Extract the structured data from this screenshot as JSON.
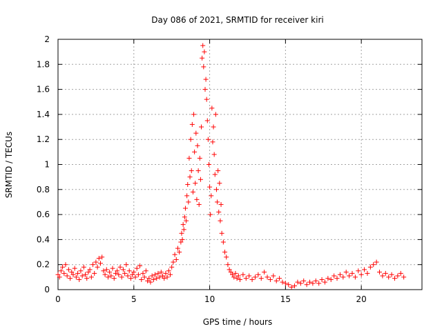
{
  "chart_data": {
    "type": "scatter",
    "title": "Day 086 of 2021, SRMTID for receiver kiri",
    "xlabel": "GPS time / hours",
    "ylabel": "SRMTID / TECUs",
    "xlim": [
      0,
      24
    ],
    "ylim": [
      0,
      2
    ],
    "grid": true,
    "xticks": [
      0,
      5,
      10,
      15,
      20
    ],
    "xtick_labels": [
      "0",
      "5",
      "10",
      "15",
      "20"
    ],
    "yticks": [
      0,
      0.2,
      0.4,
      0.6,
      0.8,
      1,
      1.2,
      1.4,
      1.6,
      1.8,
      2
    ],
    "ytick_labels": [
      "0",
      "0.2",
      "0.4",
      "0.6",
      "0.8",
      "1",
      "1.2",
      "1.4",
      "1.6",
      "1.8",
      "2"
    ],
    "marker": "+",
    "series_color": "#ff0000",
    "series": [
      {
        "name": "SRMTID",
        "points": [
          [
            0.0,
            0.12
          ],
          [
            0.1,
            0.1
          ],
          [
            0.2,
            0.15
          ],
          [
            0.3,
            0.18
          ],
          [
            0.4,
            0.13
          ],
          [
            0.5,
            0.2
          ],
          [
            0.6,
            0.11
          ],
          [
            0.7,
            0.16
          ],
          [
            0.8,
            0.09
          ],
          [
            0.9,
            0.14
          ],
          [
            1.0,
            0.12
          ],
          [
            1.1,
            0.17
          ],
          [
            1.2,
            0.1
          ],
          [
            1.3,
            0.13
          ],
          [
            1.4,
            0.08
          ],
          [
            1.5,
            0.15
          ],
          [
            1.6,
            0.11
          ],
          [
            1.7,
            0.18
          ],
          [
            1.8,
            0.12
          ],
          [
            1.9,
            0.09
          ],
          [
            2.0,
            0.14
          ],
          [
            2.1,
            0.16
          ],
          [
            2.2,
            0.1
          ],
          [
            2.3,
            0.2
          ],
          [
            2.4,
            0.13
          ],
          [
            2.5,
            0.22
          ],
          [
            2.6,
            0.18
          ],
          [
            2.7,
            0.25
          ],
          [
            2.8,
            0.21
          ],
          [
            2.9,
            0.26
          ],
          [
            3.0,
            0.15
          ],
          [
            3.1,
            0.12
          ],
          [
            3.2,
            0.16
          ],
          [
            3.3,
            0.1
          ],
          [
            3.4,
            0.14
          ],
          [
            3.5,
            0.11
          ],
          [
            3.6,
            0.17
          ],
          [
            3.7,
            0.09
          ],
          [
            3.8,
            0.13
          ],
          [
            3.9,
            0.15
          ],
          [
            4.0,
            0.12
          ],
          [
            4.1,
            0.18
          ],
          [
            4.2,
            0.1
          ],
          [
            4.3,
            0.16
          ],
          [
            4.4,
            0.13
          ],
          [
            4.5,
            0.2
          ],
          [
            4.6,
            0.11
          ],
          [
            4.7,
            0.15
          ],
          [
            4.8,
            0.09
          ],
          [
            4.9,
            0.12
          ],
          [
            5.0,
            0.14
          ],
          [
            5.1,
            0.1
          ],
          [
            5.2,
            0.17
          ],
          [
            5.3,
            0.12
          ],
          [
            5.4,
            0.19
          ],
          [
            5.5,
            0.08
          ],
          [
            5.6,
            0.13
          ],
          [
            5.7,
            0.1
          ],
          [
            5.8,
            0.15
          ],
          [
            5.9,
            0.07
          ],
          [
            6.0,
            0.09
          ],
          [
            6.1,
            0.06
          ],
          [
            6.2,
            0.11
          ],
          [
            6.3,
            0.08
          ],
          [
            6.4,
            0.12
          ],
          [
            6.5,
            0.09
          ],
          [
            6.6,
            0.13
          ],
          [
            6.7,
            0.1
          ],
          [
            6.8,
            0.14
          ],
          [
            6.9,
            0.11
          ],
          [
            7.0,
            0.09
          ],
          [
            7.1,
            0.13
          ],
          [
            7.2,
            0.1
          ],
          [
            7.3,
            0.15
          ],
          [
            7.4,
            0.12
          ],
          [
            7.5,
            0.18
          ],
          [
            7.6,
            0.22
          ],
          [
            7.7,
            0.28
          ],
          [
            7.8,
            0.24
          ],
          [
            7.9,
            0.33
          ],
          [
            8.0,
            0.3
          ],
          [
            8.1,
            0.38
          ],
          [
            8.15,
            0.45
          ],
          [
            8.2,
            0.4
          ],
          [
            8.25,
            0.52
          ],
          [
            8.3,
            0.48
          ],
          [
            8.35,
            0.58
          ],
          [
            8.4,
            0.65
          ],
          [
            8.45,
            0.55
          ],
          [
            8.5,
            0.75
          ],
          [
            8.55,
            0.84
          ],
          [
            8.6,
            0.7
          ],
          [
            8.65,
            1.05
          ],
          [
            8.7,
            0.9
          ],
          [
            8.75,
            1.2
          ],
          [
            8.8,
            0.95
          ],
          [
            8.85,
            1.32
          ],
          [
            8.9,
            0.78
          ],
          [
            8.95,
            1.4
          ],
          [
            9.0,
            1.1
          ],
          [
            9.05,
            0.85
          ],
          [
            9.1,
            1.25
          ],
          [
            9.15,
            0.72
          ],
          [
            9.2,
            1.15
          ],
          [
            9.25,
            0.95
          ],
          [
            9.3,
            0.68
          ],
          [
            9.35,
            1.05
          ],
          [
            9.4,
            0.88
          ],
          [
            9.45,
            1.3
          ],
          [
            9.5,
            1.85
          ],
          [
            9.55,
            1.95
          ],
          [
            9.6,
            1.78
          ],
          [
            9.65,
            1.9
          ],
          [
            9.7,
            1.6
          ],
          [
            9.75,
            1.68
          ],
          [
            9.8,
            1.52
          ],
          [
            9.85,
            1.35
          ],
          [
            9.9,
            1.2
          ],
          [
            9.95,
            1.0
          ],
          [
            10.0,
            0.82
          ],
          [
            10.05,
            0.6
          ],
          [
            10.1,
            0.75
          ],
          [
            10.15,
            1.45
          ],
          [
            10.2,
            1.18
          ],
          [
            10.25,
            1.3
          ],
          [
            10.3,
            1.08
          ],
          [
            10.35,
            0.92
          ],
          [
            10.4,
            1.4
          ],
          [
            10.45,
            0.8
          ],
          [
            10.5,
            0.7
          ],
          [
            10.55,
            0.95
          ],
          [
            10.6,
            0.62
          ],
          [
            10.65,
            0.85
          ],
          [
            10.7,
            0.55
          ],
          [
            10.75,
            0.68
          ],
          [
            10.8,
            0.45
          ],
          [
            10.9,
            0.38
          ],
          [
            11.0,
            0.3
          ],
          [
            11.1,
            0.26
          ],
          [
            11.2,
            0.2
          ],
          [
            11.3,
            0.16
          ],
          [
            11.4,
            0.14
          ],
          [
            11.5,
            0.12
          ],
          [
            11.6,
            0.1
          ],
          [
            11.7,
            0.13
          ],
          [
            11.8,
            0.09
          ],
          [
            11.9,
            0.11
          ],
          [
            12.0,
            0.08
          ],
          [
            12.2,
            0.12
          ],
          [
            12.4,
            0.09
          ],
          [
            12.6,
            0.11
          ],
          [
            12.8,
            0.08
          ],
          [
            13.0,
            0.1
          ],
          [
            13.2,
            0.12
          ],
          [
            13.4,
            0.09
          ],
          [
            13.6,
            0.14
          ],
          [
            13.8,
            0.1
          ],
          [
            14.0,
            0.08
          ],
          [
            14.2,
            0.11
          ],
          [
            14.4,
            0.07
          ],
          [
            14.6,
            0.09
          ],
          [
            14.8,
            0.06
          ],
          [
            15.0,
            0.05
          ],
          [
            15.2,
            0.04
          ],
          [
            15.4,
            0.02
          ],
          [
            15.6,
            0.03
          ],
          [
            15.8,
            0.06
          ],
          [
            16.0,
            0.05
          ],
          [
            16.2,
            0.07
          ],
          [
            16.4,
            0.04
          ],
          [
            16.6,
            0.06
          ],
          [
            16.8,
            0.05
          ],
          [
            17.0,
            0.07
          ],
          [
            17.2,
            0.05
          ],
          [
            17.4,
            0.08
          ],
          [
            17.6,
            0.06
          ],
          [
            17.8,
            0.09
          ],
          [
            18.0,
            0.08
          ],
          [
            18.2,
            0.11
          ],
          [
            18.4,
            0.09
          ],
          [
            18.6,
            0.12
          ],
          [
            18.8,
            0.1
          ],
          [
            19.0,
            0.14
          ],
          [
            19.2,
            0.11
          ],
          [
            19.4,
            0.13
          ],
          [
            19.6,
            0.1
          ],
          [
            19.8,
            0.15
          ],
          [
            20.0,
            0.12
          ],
          [
            20.2,
            0.16
          ],
          [
            20.4,
            0.13
          ],
          [
            20.6,
            0.18
          ],
          [
            20.8,
            0.2
          ],
          [
            21.0,
            0.22
          ],
          [
            21.2,
            0.14
          ],
          [
            21.4,
            0.11
          ],
          [
            21.6,
            0.13
          ],
          [
            21.8,
            0.1
          ],
          [
            22.0,
            0.12
          ],
          [
            22.2,
            0.09
          ],
          [
            22.4,
            0.11
          ],
          [
            22.6,
            0.13
          ],
          [
            22.8,
            0.1
          ]
        ]
      }
    ]
  }
}
